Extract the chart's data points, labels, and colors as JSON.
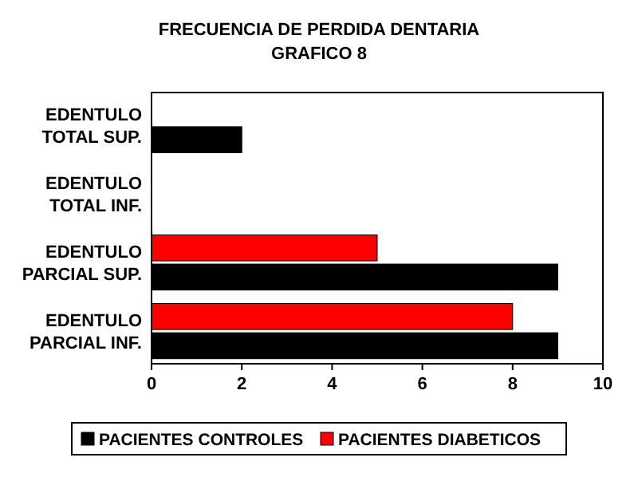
{
  "chart_data": {
    "type": "bar",
    "orientation": "horizontal",
    "title": "FRECUENCIA DE PERDIDA DENTARIA",
    "subtitle": "GRAFICO 8",
    "categories": [
      "EDENTULO TOTAL SUP.",
      "EDENTULO TOTAL INF.",
      "EDENTULO PARCIAL SUP.",
      "EDENTULO PARCIAL INF."
    ],
    "series": [
      {
        "name": "PACIENTES CONTROLES",
        "color": "#000000",
        "values": [
          2,
          0,
          9,
          9
        ]
      },
      {
        "name": "PACIENTES DIABETICOS",
        "color": "#ff0000",
        "values": [
          0,
          0,
          5,
          8
        ]
      }
    ],
    "xlim": [
      0,
      10
    ],
    "xticks": [
      0,
      2,
      4,
      6,
      8,
      10
    ],
    "grid": false,
    "legend": "bottom"
  }
}
